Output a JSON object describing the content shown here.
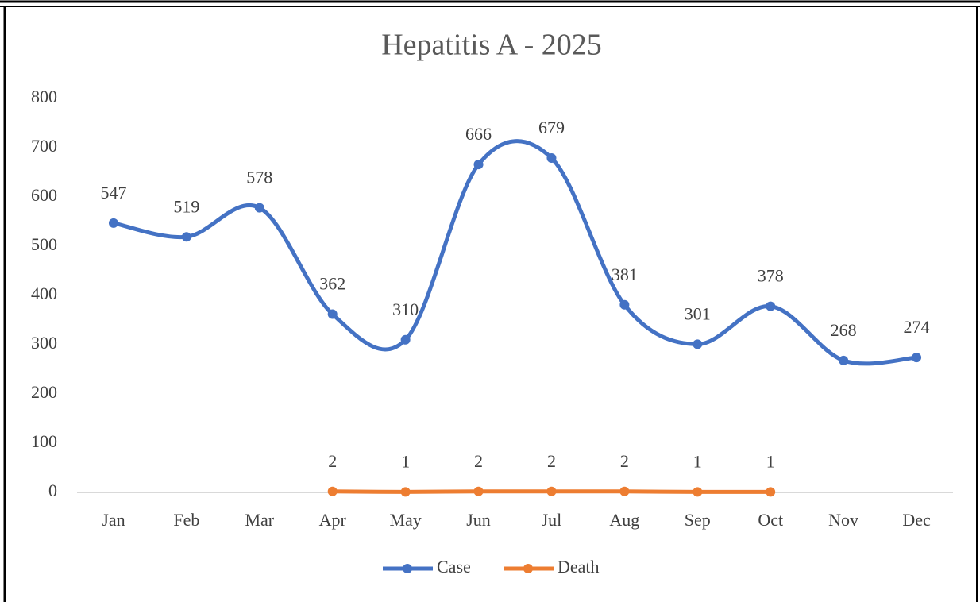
{
  "chart_data": {
    "type": "line",
    "title": "Hepatitis A - 2025",
    "categories": [
      "Jan",
      "Feb",
      "Mar",
      "Apr",
      "May",
      "Jun",
      "Jul",
      "Aug",
      "Sep",
      "Oct",
      "Nov",
      "Dec"
    ],
    "series": [
      {
        "name": "Case",
        "color": "#4472c4",
        "values": [
          547,
          519,
          578,
          362,
          310,
          666,
          679,
          381,
          301,
          378,
          268,
          274
        ]
      },
      {
        "name": "Death",
        "color": "#ed7d31",
        "values": [
          null,
          null,
          null,
          2,
          1,
          2,
          2,
          2,
          1,
          1,
          null,
          null
        ]
      }
    ],
    "ylim": [
      0,
      800
    ],
    "yticks": [
      0,
      100,
      200,
      300,
      400,
      500,
      600,
      700,
      800
    ],
    "grid": false,
    "smooth": true,
    "data_labels": true,
    "legend": "bottom"
  }
}
